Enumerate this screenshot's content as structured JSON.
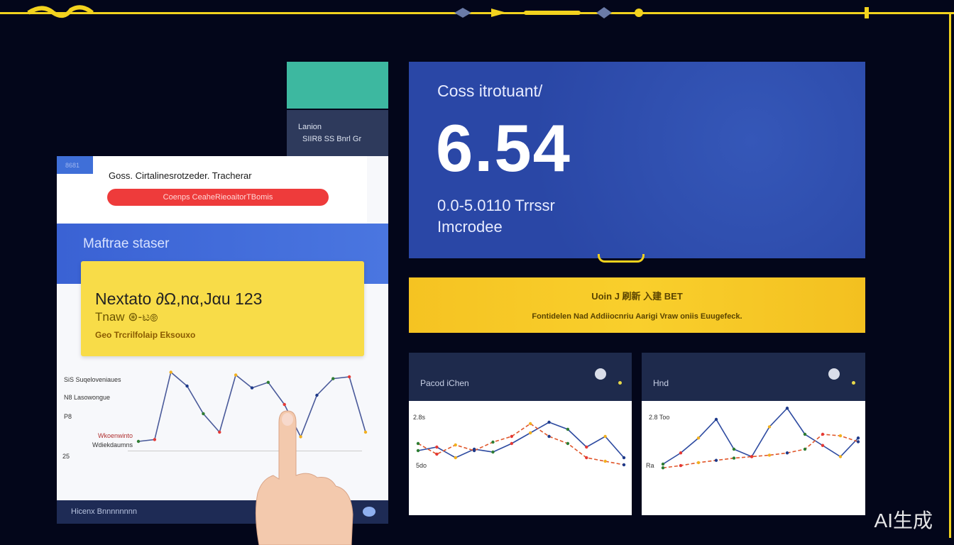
{
  "side_panel": {
    "line1": "Lanion",
    "line2": "SIIR8 SS Bnrl Gr"
  },
  "left_card": {
    "tab": "8681",
    "title": "Goss. Cirtalinesrotzeder. Tracherar",
    "red_button": "Coenps CeaheRieoaitorTBomis",
    "band_title": "Maftrae staser",
    "yellow": {
      "line1": "Nextato ∂Ω,nα,Jαu  123",
      "line2": "Tnaw ⊛-ಟ⊛",
      "line3": "Geo Trcrilfolaip Eksouxo"
    },
    "legend": [
      "SiS Suqeloveniaues",
      "N8 Lasowongue",
      "P8",
      "Wkoenwinto",
      "Wdiekdaumns",
      "25"
    ],
    "footer": "Hicenx Bnnnnnnnn",
    "series": [
      [
        10,
        12,
        85,
        70,
        40,
        20,
        82,
        68,
        74,
        50,
        15,
        60,
        78,
        80,
        20
      ]
    ]
  },
  "metric": {
    "title": "Coss itrotuant/",
    "value": "6.54",
    "sub1": "0.0-5.0110 Trrssr",
    "sub2": "Imcrodee"
  },
  "banner": {
    "heading": "Uoin J 刷新 入建 BET",
    "text": "Fontidelen Nad Addiiocnriu Aarigi Vraw oniis Euugefeck."
  },
  "charts": [
    {
      "title": "Pacod iChen",
      "label_top": "2.8s",
      "label_bottom": "5do",
      "series": [
        [
          40,
          45,
          30,
          42,
          38,
          50,
          65,
          80,
          70,
          45,
          60,
          30
        ],
        [
          50,
          35,
          48,
          40,
          52,
          60,
          78,
          60,
          50,
          30,
          25,
          20
        ]
      ]
    },
    {
      "title": "Hnd",
      "label_top": "2.8 Too",
      "label_bottom": "Ra",
      "series": [
        [
          20,
          35,
          55,
          80,
          40,
          30,
          70,
          95,
          60,
          45,
          30,
          55
        ],
        [
          15,
          18,
          22,
          25,
          28,
          30,
          32,
          35,
          40,
          60,
          58,
          50
        ]
      ]
    }
  ],
  "watermark": "AI生成",
  "colors": {
    "background": "#03061a",
    "accent_yellow": "#f2d21e",
    "metric_blue": "#2a48a8",
    "teal": "#3db8a0",
    "red": "#ee3b3b"
  }
}
